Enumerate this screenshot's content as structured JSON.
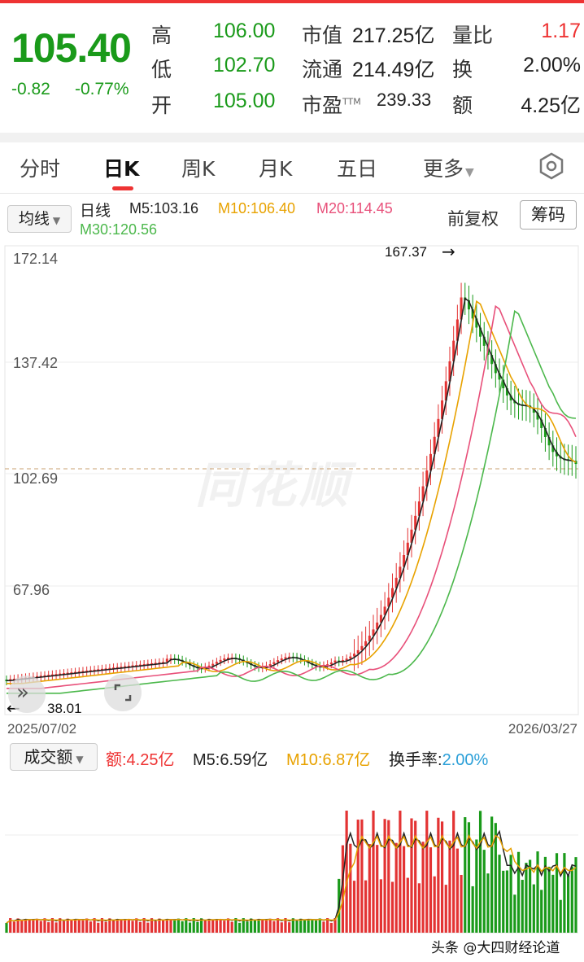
{
  "quote": {
    "price": "105.40",
    "change": "-0.82",
    "change_pct": "-0.77%",
    "rows": [
      {
        "l1": "高",
        "v1": "106.00",
        "l2": "市值",
        "v2": "217.25亿",
        "l3": "量比",
        "v3": "1.17"
      },
      {
        "l1": "低",
        "v1": "102.70",
        "l2": "流通",
        "v2": "214.49亿",
        "l3": "换",
        "v3": "2.00%"
      },
      {
        "l1": "开",
        "v1": "105.00",
        "l2": "市盈",
        "l2sup": "TTM",
        "v2": "239.33",
        "l3": "额",
        "v3": "4.25亿"
      }
    ]
  },
  "tabs": [
    "分时",
    "日K",
    "周K",
    "月K",
    "五日",
    "更多"
  ],
  "active_tab": "日K",
  "kline": {
    "ma_selector": "均线",
    "period": "日线",
    "ma": [
      {
        "label": "M5:103.16",
        "color": "#222222"
      },
      {
        "label": "M10:106.40",
        "color": "#e8a200"
      },
      {
        "label": "M20:114.45",
        "color": "#e8507a"
      },
      {
        "label": "M30:120.56",
        "color": "#4cb84c"
      }
    ],
    "adjust": "前复权",
    "chips_button": "筹码",
    "y_labels": [
      "172.14",
      "137.42",
      "102.69",
      "67.96"
    ],
    "high_marker": "167.37",
    "low_marker": "38.01",
    "start_date": "2025/07/02",
    "end_date": "2026/03/27",
    "watermark": "同花顺"
  },
  "volume": {
    "selector": "成交额",
    "amount": "额:4.25亿",
    "m5": "M5:6.59亿",
    "m10": "M10:6.87亿",
    "turnover_label": "换手率:",
    "turnover_value": "2.00%"
  },
  "footer": {
    "watermark": "头条 @大四财经论道"
  },
  "colors": {
    "up": "#e33333",
    "down": "#1a9a1a",
    "ma5": "#222222",
    "ma10": "#e8a200",
    "ma20": "#e8507a",
    "ma30": "#4cb84c"
  }
}
